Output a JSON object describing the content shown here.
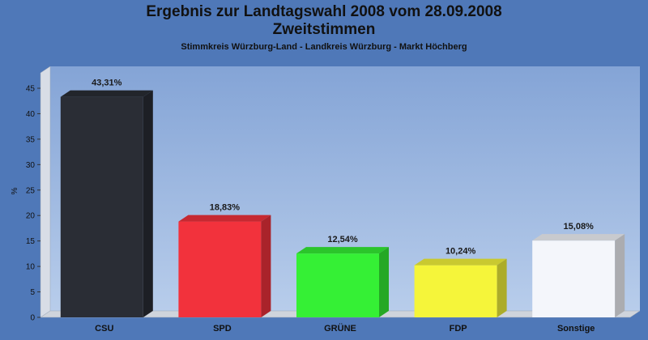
{
  "chart_data": {
    "type": "bar",
    "title_line1": "Ergebnis zur Landtagswahl 2008 vom 28.09.2008",
    "title_line2": "Zweitstimmen",
    "subtitle": "Stimmkreis Würzburg-Land - Landkreis Würzburg - Markt Höchberg",
    "ylabel": "%",
    "ylim": [
      0,
      45
    ],
    "yticks": [
      0,
      5,
      10,
      15,
      20,
      25,
      30,
      35,
      40,
      45
    ],
    "grid": false,
    "categories": [
      "CSU",
      "SPD",
      "GRÜNE",
      "FDP",
      "Sonstige"
    ],
    "values": [
      43.31,
      18.83,
      12.54,
      10.24,
      15.08
    ],
    "value_labels": [
      "43,31%",
      "18,83%",
      "12,54%",
      "10,24%",
      "15,08%"
    ],
    "colors": [
      "#2a2d35",
      "#f2323c",
      "#35f035",
      "#f5f53a",
      "#f4f6fb"
    ],
    "background": "#4f78b8"
  }
}
